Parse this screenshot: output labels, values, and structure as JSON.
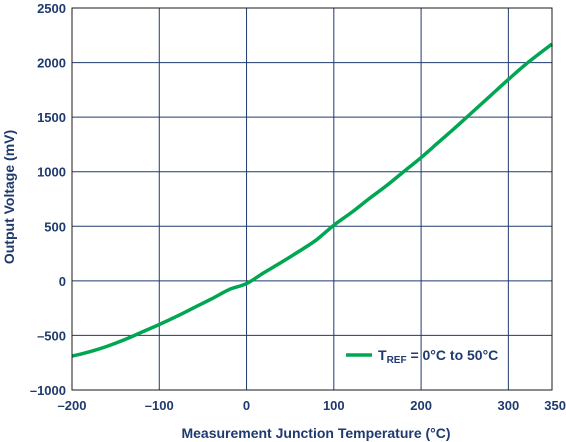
{
  "chart_data": {
    "type": "line",
    "xlabel": "Measurement Junction Temperature (°C)",
    "ylabel": "Output Voltage (mV)",
    "xlim": [
      -200,
      350
    ],
    "ylim": [
      -1000,
      2500
    ],
    "x_ticks": [
      -200,
      -100,
      0,
      100,
      200,
      300,
      350
    ],
    "x_tick_labels": [
      "–200",
      "–100",
      "0",
      "100",
      "200",
      "300",
      "350"
    ],
    "y_ticks": [
      -1000,
      -500,
      0,
      500,
      1000,
      1500,
      2000,
      2500
    ],
    "y_tick_labels": [
      "–1000",
      "–500",
      "0",
      "500",
      "1000",
      "1500",
      "2000",
      "2500"
    ],
    "grid": true,
    "legend_placement": "bottom-right",
    "legend": {
      "prefix": "T",
      "subscript": "REF",
      "suffix": " = 0°C to 50°C"
    },
    "series": [
      {
        "color": "#00a651",
        "x": [
          -200,
          -180,
          -160,
          -140,
          -120,
          -100,
          -80,
          -60,
          -40,
          -20,
          0,
          20,
          40,
          60,
          80,
          100,
          120,
          140,
          160,
          180,
          200,
          220,
          240,
          260,
          280,
          300,
          320,
          350
        ],
        "y": [
          -690,
          -650,
          -600,
          -540,
          -470,
          -400,
          -325,
          -245,
          -165,
          -80,
          -25,
          75,
          170,
          270,
          375,
          510,
          625,
          750,
          870,
          1000,
          1130,
          1270,
          1410,
          1555,
          1700,
          1845,
          1985,
          2170
        ]
      }
    ]
  }
}
